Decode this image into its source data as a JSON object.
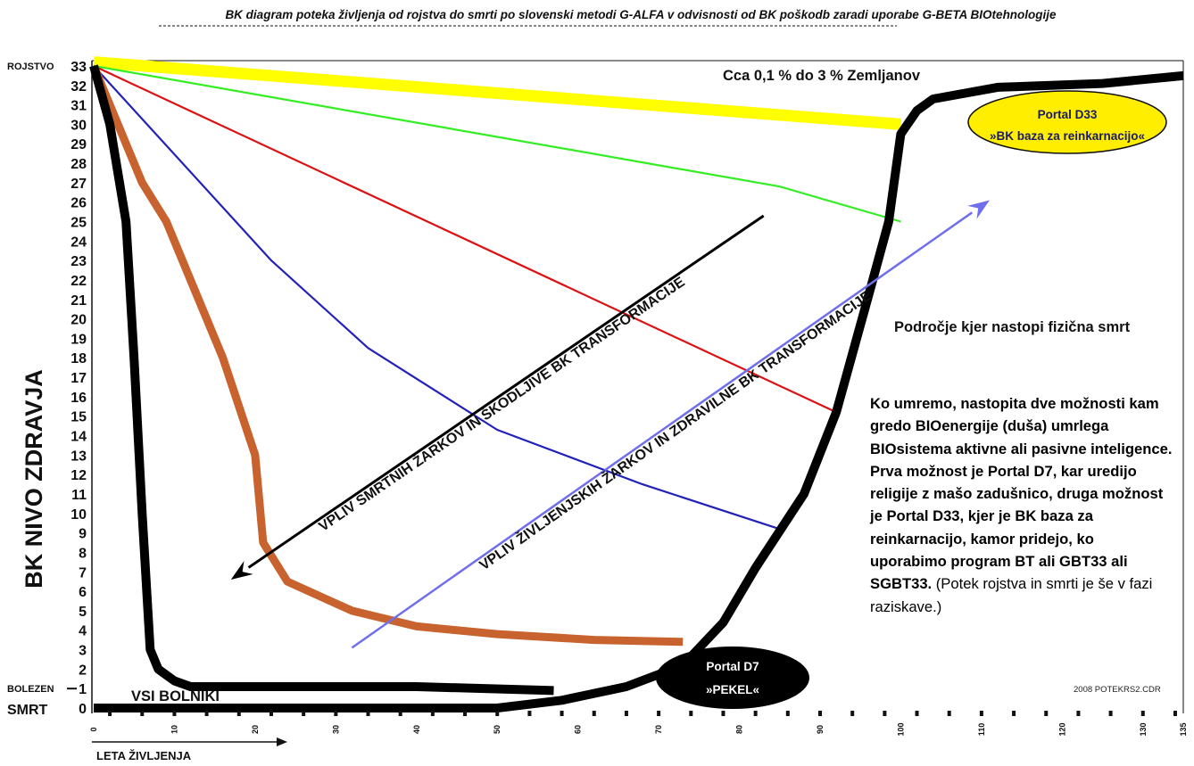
{
  "chart_data": {
    "type": "line",
    "title": "BK diagram poteka življenja od rojstva do smrti po slovenski metodi G-ALFA v odvisnosti od BK poškodb zaradi uporabe G-BETA BIOtehnologije",
    "xlabel": "LETA ŽIVLJENJA",
    "ylabel": "BK NIVO ZDRAVJA",
    "xlim": [
      0,
      135
    ],
    "ylim": [
      0,
      33
    ],
    "x_ticks": [
      0,
      10,
      20,
      30,
      40,
      50,
      60,
      70,
      80,
      90,
      100,
      110,
      120,
      130,
      135
    ],
    "y_ticks": [
      0,
      1,
      2,
      3,
      4,
      5,
      6,
      7,
      8,
      9,
      10,
      11,
      12,
      13,
      14,
      15,
      16,
      17,
      18,
      19,
      20,
      21,
      22,
      23,
      24,
      25,
      26,
      27,
      28,
      29,
      30,
      31,
      32,
      33
    ],
    "y_side_labels": [
      {
        "y": 33,
        "text": "ROJSTVO"
      },
      {
        "y": 1,
        "text": "BOLEZEN"
      },
      {
        "y": 0,
        "text": "SMRT"
      }
    ],
    "grid": false,
    "series": [
      {
        "color": "#ffff00",
        "points": [
          [
            0,
            33.2
          ],
          [
            100,
            30
          ]
        ]
      },
      {
        "color": "#33ee22",
        "points": [
          [
            0,
            33
          ],
          [
            85,
            26.8
          ],
          [
            100,
            25
          ]
        ]
      },
      {
        "color": "#dd1111",
        "points": [
          [
            0,
            33
          ],
          [
            92,
            15.2
          ]
        ]
      },
      {
        "color": "#2222bb",
        "points": [
          [
            0,
            33
          ],
          [
            22,
            23
          ],
          [
            34,
            18.5
          ],
          [
            50,
            14.3
          ],
          [
            68,
            11.5
          ],
          [
            85,
            9.2
          ]
        ]
      },
      {
        "color": "#c8622e",
        "points": [
          [
            0,
            33
          ],
          [
            6,
            27
          ],
          [
            9,
            25
          ],
          [
            12,
            22
          ],
          [
            16,
            18
          ],
          [
            20,
            13
          ],
          [
            21,
            8.5
          ],
          [
            24,
            6.5
          ],
          [
            32,
            5
          ],
          [
            40,
            4.2
          ],
          [
            50,
            3.8
          ],
          [
            62,
            3.5
          ],
          [
            73,
            3.4
          ]
        ]
      },
      {
        "color": "#000000",
        "points": [
          [
            0,
            33
          ],
          [
            2,
            30
          ],
          [
            4,
            25
          ],
          [
            5,
            18
          ],
          [
            6,
            10
          ],
          [
            7,
            3
          ],
          [
            8,
            2
          ],
          [
            10,
            1.4
          ],
          [
            12,
            1.1
          ],
          [
            40,
            1.1
          ],
          [
            57,
            0.9
          ]
        ]
      },
      {
        "color": "#000000",
        "points": [
          [
            0,
            0
          ],
          [
            50,
            0
          ],
          [
            58,
            0.4
          ],
          [
            66,
            1.1
          ],
          [
            73,
            2.2
          ],
          [
            78,
            4.4
          ],
          [
            82,
            7.2
          ],
          [
            88,
            11
          ],
          [
            92,
            15.2
          ],
          [
            96,
            21.2
          ],
          [
            98.5,
            25
          ],
          [
            100,
            29.5
          ],
          [
            102,
            30.7
          ],
          [
            104,
            31.3
          ],
          [
            112,
            31.9
          ],
          [
            125,
            32.1
          ],
          [
            135,
            32.5
          ]
        ]
      }
    ],
    "arrows": [
      {
        "text": "VPLIV SMRTNIH ŽARKOV IN ŠKODLJIVE BK TRANSFORMACIJE",
        "color": "#000000",
        "from": [
          83,
          25.3
        ],
        "to": [
          17,
          6.6
        ]
      },
      {
        "text": "VPLIV ŽIVLJENJSKIH ŽARKOV IN ZDRAVILNE BK TRANSFORMACIJE",
        "color": "#6f6fee",
        "from": [
          32,
          3.1
        ],
        "to": [
          111,
          26.1
        ]
      }
    ],
    "annotations": [
      "Cca 0,1 % do 3 % Zemljanov",
      "Področje kjer nastopi fizična smrt",
      "VSI BOLNIKI",
      "2008 POTEKRS2.CDR"
    ],
    "portals": [
      {
        "line1": "Portal D33",
        "line2": "»BK baza za reinkarnacijo«",
        "fill": "#ffee00",
        "text_color": "#1a1a66"
      },
      {
        "line1": "Portal D7",
        "line2": "»PEKEL«",
        "fill": "#000000",
        "text_color": "#ffffff"
      }
    ]
  },
  "explanation": {
    "bold": "Ko umremo, nastopita dve možnosti kam gredo BIOenergije (duša) umrlega BIOsistema aktivne ali pasivne inteligence. Prva možnost je Portal D7, kar uredijo religije z mašo zadušnico, druga možnost je Portal D33, kjer je BK baza za reinkarnacijo, kamor pridejo, ko uporabimo program BT ali GBT33 ali SGBT33.",
    "normal": " (Potek rojstva in smrti je še v fazi raziskave.)"
  }
}
